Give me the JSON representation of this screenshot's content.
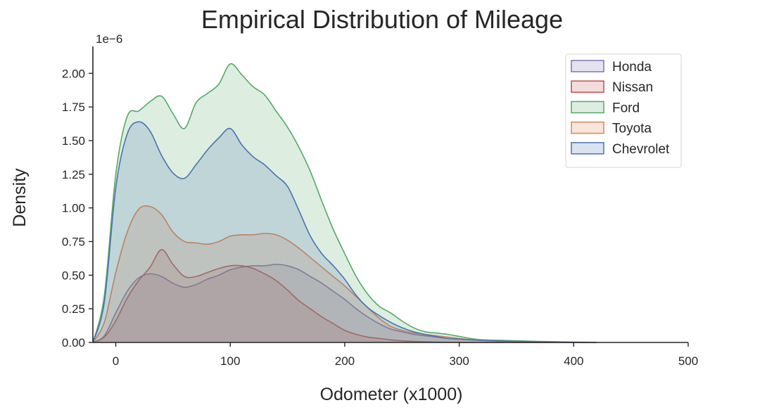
{
  "chart_data": {
    "type": "area",
    "title": "Empirical Distribution of Mileage",
    "xlabel": "Odometer (x1000)",
    "ylabel": "Density",
    "y_scale_label": "1e−6",
    "xlim": [
      -20,
      500
    ],
    "ylim": [
      0,
      2.2
    ],
    "xticks": [
      0,
      100,
      200,
      300,
      400,
      500
    ],
    "yticks": [
      0.0,
      0.25,
      0.5,
      0.75,
      1.0,
      1.25,
      1.5,
      1.75,
      2.0
    ],
    "ytick_labels": [
      "0.00",
      "0.25",
      "0.50",
      "0.75",
      "1.00",
      "1.25",
      "1.50",
      "1.75",
      "2.00"
    ],
    "grid": false,
    "legend_position": "top-right",
    "x": [
      -20,
      -10,
      0,
      10,
      20,
      30,
      40,
      50,
      60,
      70,
      80,
      90,
      100,
      110,
      120,
      130,
      140,
      150,
      160,
      170,
      180,
      190,
      200,
      210,
      220,
      230,
      240,
      250,
      260,
      270,
      280,
      290,
      300,
      310,
      320,
      340,
      360,
      380,
      400,
      420
    ],
    "series": [
      {
        "name": "Honda",
        "color": "#8172b3",
        "values": [
          0.0,
          0.05,
          0.22,
          0.38,
          0.48,
          0.51,
          0.49,
          0.44,
          0.41,
          0.43,
          0.47,
          0.5,
          0.54,
          0.56,
          0.57,
          0.57,
          0.58,
          0.57,
          0.54,
          0.49,
          0.44,
          0.38,
          0.32,
          0.25,
          0.19,
          0.14,
          0.1,
          0.08,
          0.06,
          0.05,
          0.04,
          0.03,
          0.025,
          0.02,
          0.015,
          0.01,
          0.006,
          0.003,
          0.001,
          0.0
        ]
      },
      {
        "name": "Nissan",
        "color": "#c44e52",
        "values": [
          0.0,
          0.04,
          0.16,
          0.33,
          0.46,
          0.56,
          0.69,
          0.58,
          0.49,
          0.49,
          0.52,
          0.55,
          0.57,
          0.57,
          0.55,
          0.51,
          0.46,
          0.39,
          0.31,
          0.25,
          0.19,
          0.14,
          0.09,
          0.06,
          0.04,
          0.03,
          0.02,
          0.012,
          0.008,
          0.005,
          0.003,
          0.002,
          0.001,
          0.0,
          0.0,
          0.0,
          0.0,
          0.0,
          0.0,
          0.0
        ]
      },
      {
        "name": "Ford",
        "color": "#55a868",
        "values": [
          0.0,
          0.35,
          1.25,
          1.68,
          1.72,
          1.79,
          1.83,
          1.7,
          1.59,
          1.78,
          1.85,
          1.92,
          2.07,
          1.99,
          1.9,
          1.84,
          1.72,
          1.6,
          1.45,
          1.27,
          1.05,
          0.84,
          0.66,
          0.49,
          0.36,
          0.27,
          0.22,
          0.16,
          0.11,
          0.08,
          0.07,
          0.06,
          0.045,
          0.03,
          0.02,
          0.015,
          0.01,
          0.006,
          0.003,
          0.001
        ]
      },
      {
        "name": "Toyota",
        "color": "#dd8452",
        "values": [
          0.0,
          0.15,
          0.52,
          0.82,
          0.99,
          1.01,
          0.95,
          0.82,
          0.75,
          0.74,
          0.73,
          0.75,
          0.79,
          0.8,
          0.8,
          0.81,
          0.8,
          0.76,
          0.7,
          0.63,
          0.56,
          0.49,
          0.42,
          0.34,
          0.26,
          0.18,
          0.12,
          0.09,
          0.07,
          0.06,
          0.05,
          0.04,
          0.03,
          0.02,
          0.015,
          0.01,
          0.006,
          0.003,
          0.001,
          0.0
        ]
      },
      {
        "name": "Chevrolet",
        "color": "#4c72b0",
        "values": [
          0.0,
          0.3,
          1.15,
          1.55,
          1.64,
          1.57,
          1.39,
          1.26,
          1.22,
          1.32,
          1.43,
          1.52,
          1.59,
          1.47,
          1.38,
          1.32,
          1.24,
          1.16,
          0.98,
          0.79,
          0.66,
          0.57,
          0.47,
          0.35,
          0.26,
          0.2,
          0.15,
          0.11,
          0.08,
          0.06,
          0.045,
          0.03,
          0.025,
          0.02,
          0.015,
          0.01,
          0.006,
          0.003,
          0.001,
          0.0
        ]
      }
    ]
  }
}
